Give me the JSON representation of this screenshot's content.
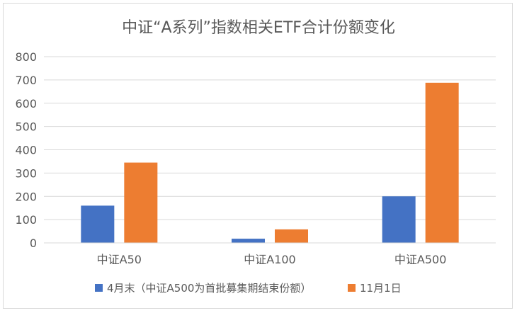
{
  "chart_data": {
    "type": "bar",
    "title": "中证“A系列”指数相关ETF合计份额变化",
    "categories": [
      "中证A50",
      "中证A100",
      "中证A500"
    ],
    "series": [
      {
        "name": "4月末（中证A500为首批募集期结束份额）",
        "values": [
          160,
          18,
          200
        ],
        "color": "#4472C4"
      },
      {
        "name": "11月1日",
        "values": [
          345,
          58,
          688
        ],
        "color": "#ED7D31"
      }
    ],
    "ylim": [
      0,
      800
    ],
    "yticks": [
      0,
      100,
      200,
      300,
      400,
      500,
      600,
      700,
      800
    ],
    "grid": true,
    "legend": "bottom"
  }
}
